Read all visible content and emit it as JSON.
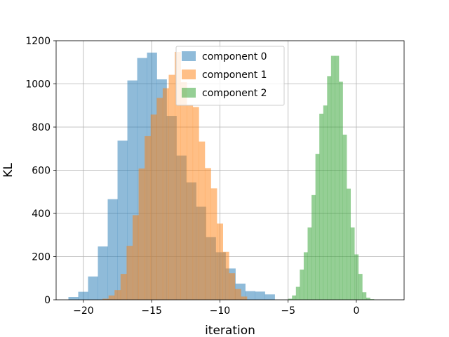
{
  "chart_data": {
    "type": "bar",
    "title": "",
    "xlabel": "iteration",
    "ylabel": "KL",
    "xlim": [
      -22,
      3.5
    ],
    "ylim": [
      0,
      1200
    ],
    "xticks": [
      -20,
      -15,
      -10,
      -5,
      0
    ],
    "xtick_labels": [
      "−20",
      "−15",
      "−10",
      "−5",
      "0"
    ],
    "yticks": [
      0,
      200,
      400,
      600,
      800,
      1000,
      1200
    ],
    "ytick_labels": [
      "0",
      "200",
      "400",
      "600",
      "800",
      "1000",
      "1200"
    ],
    "grid": true,
    "legend_position": "top-center",
    "series": [
      {
        "name": "component 0",
        "color": "#1f77b4",
        "alpha": 0.5,
        "bin_start": -21.1,
        "bin_width": 0.72,
        "counts": [
          13,
          37,
          108,
          247,
          466,
          737,
          1016,
          1120,
          1145,
          1021,
          852,
          668,
          544,
          431,
          290,
          220,
          145,
          75,
          40,
          38,
          25
        ]
      },
      {
        "name": "component 1",
        "color": "#ff7f0e",
        "alpha": 0.5,
        "bin_start": -18.6,
        "bin_width": 0.441,
        "counts": [
          5,
          20,
          45,
          120,
          250,
          392,
          608,
          758,
          858,
          935,
          980,
          1042,
          1148,
          1008,
          900,
          893,
          733,
          610,
          516,
          353,
          222,
          123,
          50,
          15
        ]
      },
      {
        "name": "component 2",
        "color": "#2ca02c",
        "alpha": 0.5,
        "bin_start": -5.0,
        "bin_width": 0.286,
        "counts": [
          5,
          20,
          60,
          140,
          220,
          335,
          485,
          676,
          862,
          900,
          1036,
          1130,
          1130,
          1010,
          765,
          515,
          335,
          210,
          120,
          35,
          10,
          3
        ]
      }
    ]
  }
}
